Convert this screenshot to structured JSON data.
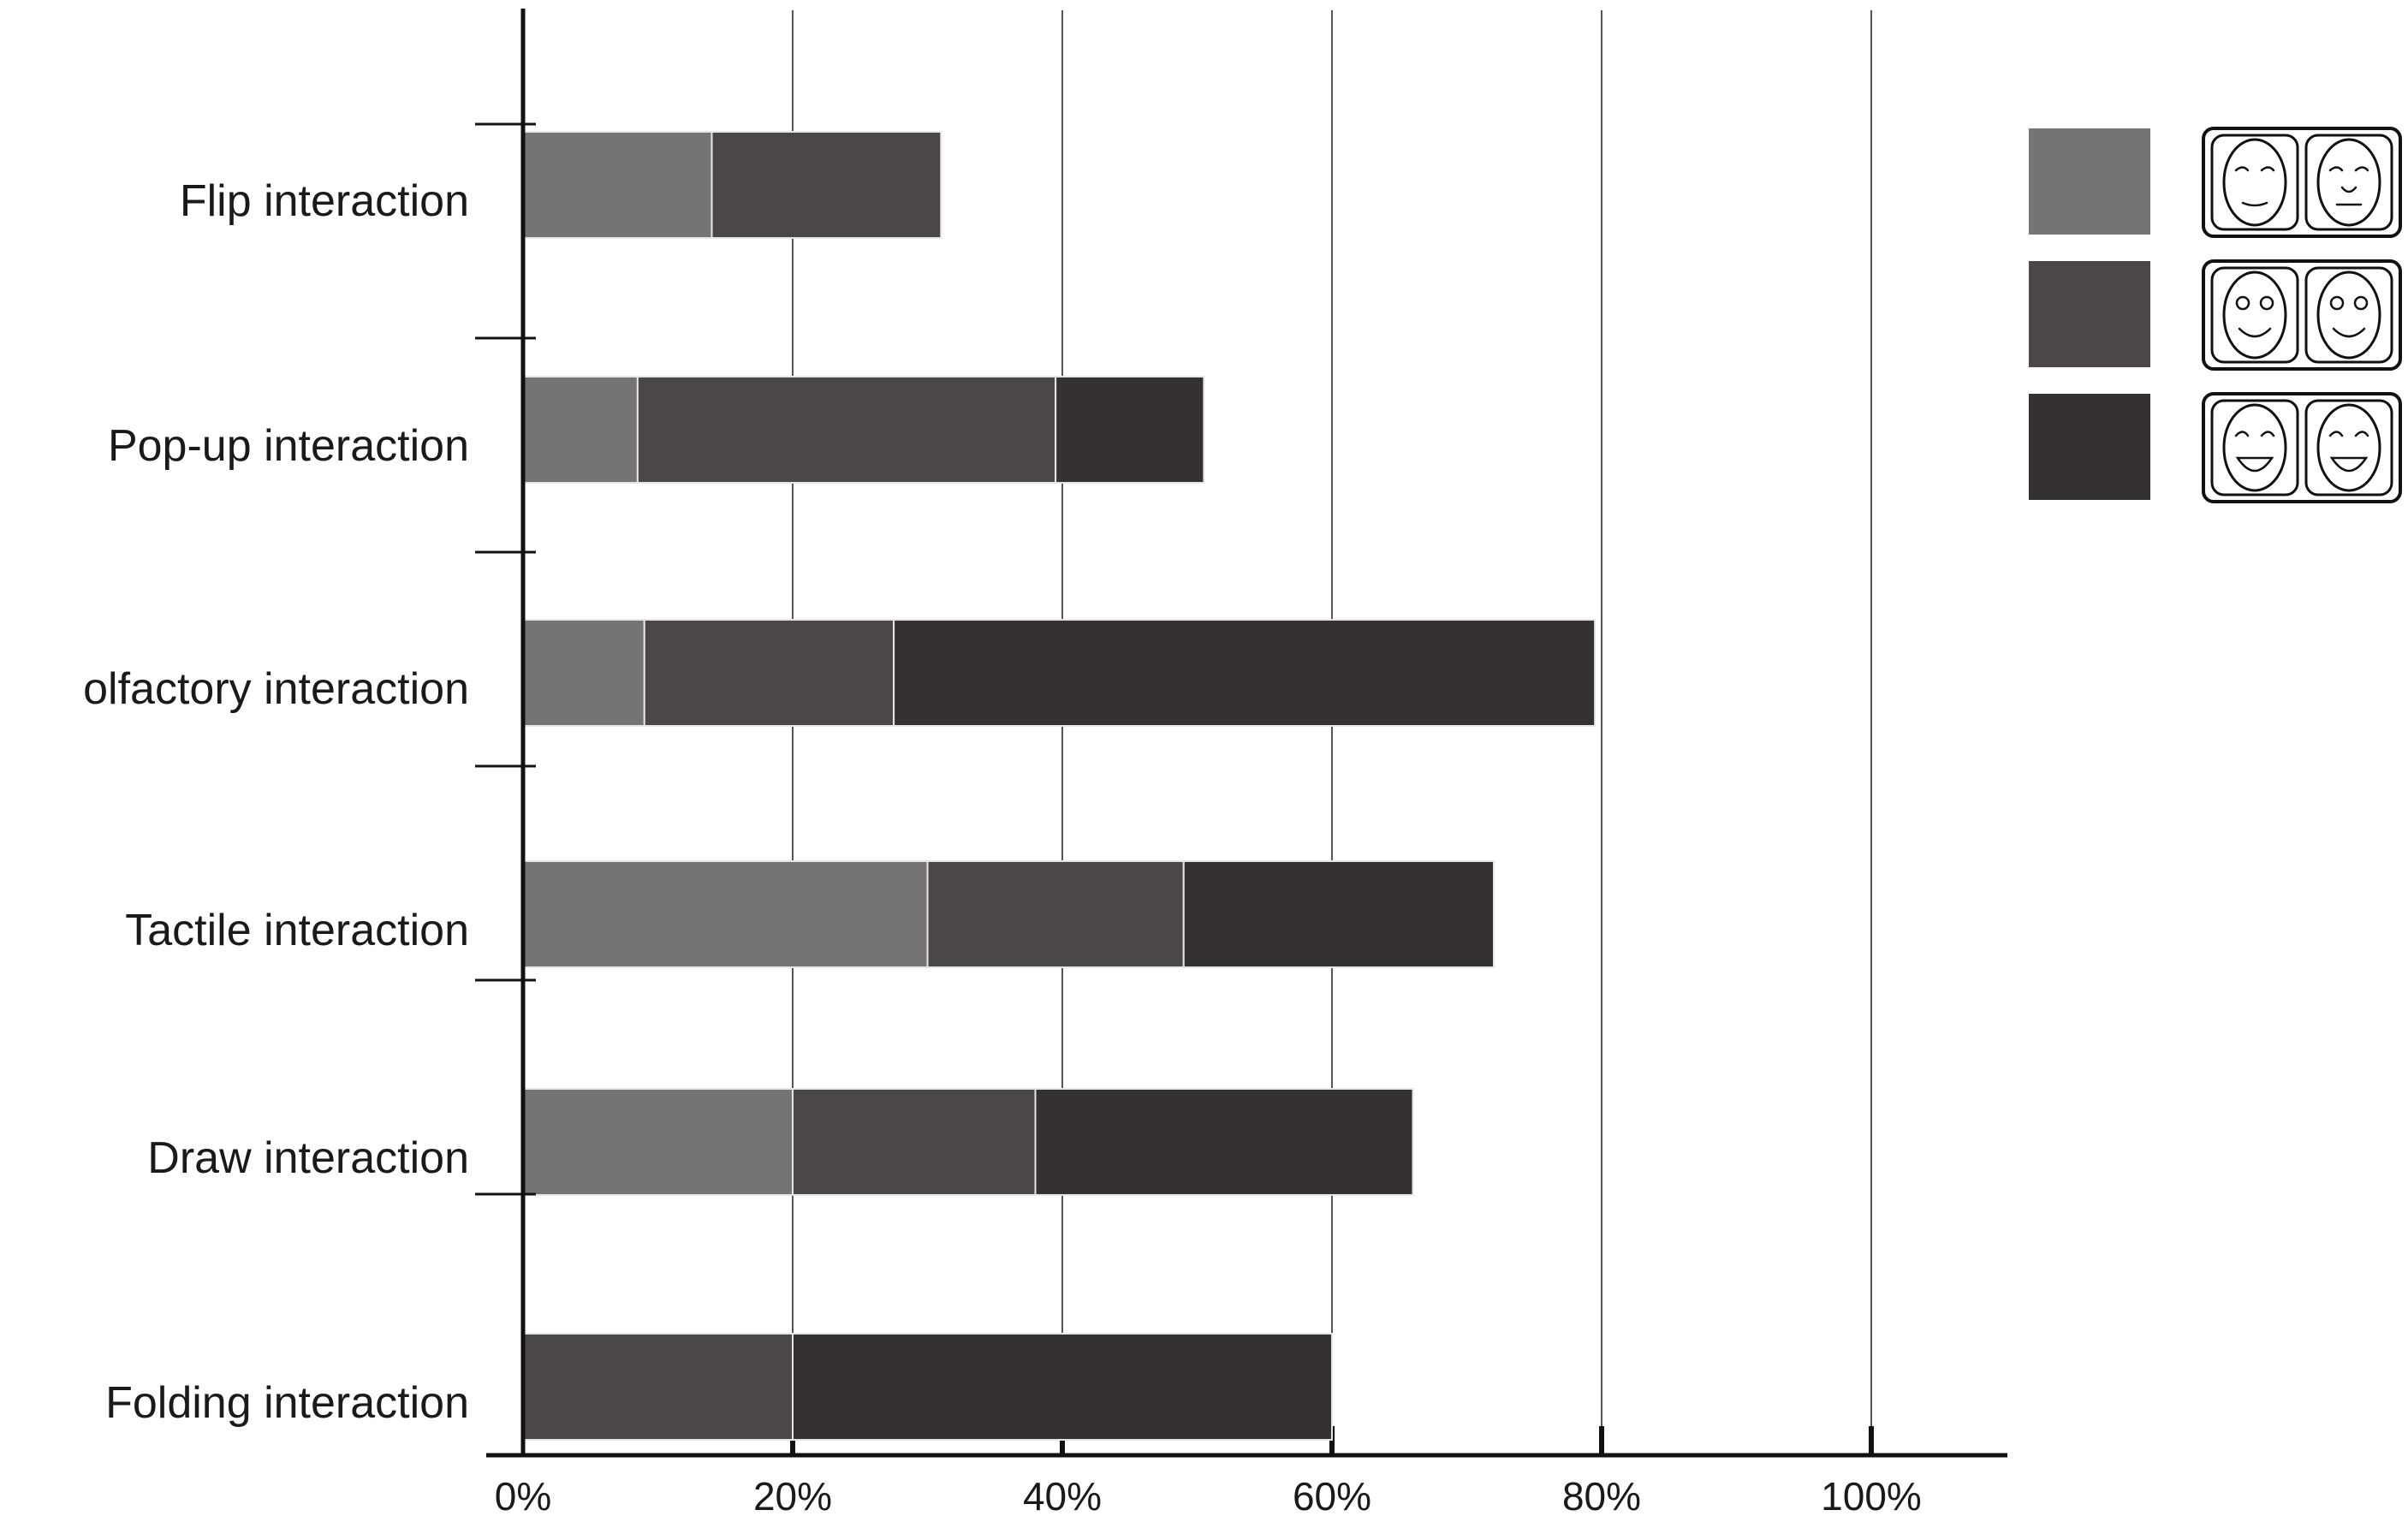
{
  "chart_data": {
    "type": "bar",
    "orientation": "horizontal",
    "stacked": true,
    "title": "",
    "xlabel": "",
    "ylabel": "",
    "categories": [
      "Flip interaction",
      "Pop-up interaction",
      "olfactory interaction",
      "Tactile interaction",
      "Draw interaction",
      "Folding interaction"
    ],
    "series": [
      {
        "color": "#757473",
        "values": [
          14,
          8.5,
          9,
          30,
          20,
          0
        ],
        "legend_icon": "calm-faces-icon"
      },
      {
        "color": "#4a4746",
        "values": [
          17,
          31,
          18.5,
          19,
          18,
          20
        ],
        "legend_icon": "smiling-faces-icon"
      },
      {
        "color": "#343130",
        "values": [
          0,
          11,
          52,
          23,
          28,
          40
        ],
        "legend_icon": "laughing-faces-icon"
      }
    ],
    "xlim": [
      0,
      100
    ],
    "xticks": [
      0,
      20,
      40,
      60,
      80,
      100
    ],
    "xtick_labels": [
      "0%",
      "20%",
      "40%",
      "60%",
      "80%",
      "100%"
    ],
    "grid": true,
    "legend_position": "top-right"
  }
}
